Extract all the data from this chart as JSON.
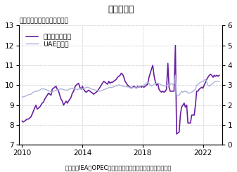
{
  "title": "原油生産量",
  "subtitle": "（両軸共に百万バレル／日）",
  "footer": "（出所：IEA、OPECより住友商事グローバルリサーチ作成）",
  "legend_saudi": "サウジアラビア",
  "legend_uae": "UAE（右）",
  "saudi_color": "#6a1fa0",
  "uae_color": "#aab4d8",
  "left_ylim": [
    7,
    13
  ],
  "right_ylim": [
    0,
    6
  ],
  "left_yticks": [
    7,
    8,
    9,
    10,
    11,
    12,
    13
  ],
  "right_yticks": [
    0,
    1,
    2,
    3,
    4,
    5,
    6
  ],
  "xlim_start": 2009.8,
  "xlim_end": 2023.3,
  "xticks": [
    2010,
    2014,
    2018,
    2022
  ],
  "grid_color": "#cccccc",
  "background_color": "#ffffff",
  "saudi_data": [
    [
      2010.0,
      8.2
    ],
    [
      2010.08,
      8.15
    ],
    [
      2010.17,
      8.2
    ],
    [
      2010.25,
      8.25
    ],
    [
      2010.33,
      8.3
    ],
    [
      2010.42,
      8.3
    ],
    [
      2010.5,
      8.35
    ],
    [
      2010.58,
      8.4
    ],
    [
      2010.67,
      8.55
    ],
    [
      2010.75,
      8.7
    ],
    [
      2010.83,
      8.85
    ],
    [
      2010.92,
      9.0
    ],
    [
      2011.0,
      8.8
    ],
    [
      2011.08,
      8.85
    ],
    [
      2011.17,
      8.9
    ],
    [
      2011.25,
      9.0
    ],
    [
      2011.33,
      9.1
    ],
    [
      2011.42,
      9.15
    ],
    [
      2011.5,
      9.3
    ],
    [
      2011.58,
      9.4
    ],
    [
      2011.67,
      9.5
    ],
    [
      2011.75,
      9.6
    ],
    [
      2011.83,
      9.55
    ],
    [
      2011.92,
      9.5
    ],
    [
      2012.0,
      9.8
    ],
    [
      2012.08,
      9.85
    ],
    [
      2012.17,
      9.9
    ],
    [
      2012.25,
      9.95
    ],
    [
      2012.33,
      9.8
    ],
    [
      2012.42,
      9.7
    ],
    [
      2012.5,
      9.5
    ],
    [
      2012.58,
      9.3
    ],
    [
      2012.67,
      9.2
    ],
    [
      2012.75,
      9.0
    ],
    [
      2012.83,
      9.1
    ],
    [
      2012.92,
      9.2
    ],
    [
      2013.0,
      9.1
    ],
    [
      2013.08,
      9.2
    ],
    [
      2013.17,
      9.3
    ],
    [
      2013.25,
      9.4
    ],
    [
      2013.33,
      9.6
    ],
    [
      2013.42,
      9.7
    ],
    [
      2013.5,
      9.9
    ],
    [
      2013.58,
      10.0
    ],
    [
      2013.67,
      10.05
    ],
    [
      2013.75,
      10.1
    ],
    [
      2013.83,
      9.9
    ],
    [
      2013.92,
      9.8
    ],
    [
      2014.0,
      9.95
    ],
    [
      2014.08,
      9.8
    ],
    [
      2014.17,
      9.7
    ],
    [
      2014.25,
      9.65
    ],
    [
      2014.33,
      9.7
    ],
    [
      2014.42,
      9.75
    ],
    [
      2014.5,
      9.7
    ],
    [
      2014.58,
      9.65
    ],
    [
      2014.67,
      9.6
    ],
    [
      2014.75,
      9.55
    ],
    [
      2014.83,
      9.6
    ],
    [
      2014.92,
      9.65
    ],
    [
      2015.0,
      9.7
    ],
    [
      2015.08,
      9.8
    ],
    [
      2015.17,
      9.9
    ],
    [
      2015.25,
      10.0
    ],
    [
      2015.33,
      10.1
    ],
    [
      2015.42,
      10.2
    ],
    [
      2015.5,
      10.15
    ],
    [
      2015.58,
      10.1
    ],
    [
      2015.67,
      10.05
    ],
    [
      2015.75,
      10.2
    ],
    [
      2015.83,
      10.1
    ],
    [
      2015.92,
      10.15
    ],
    [
      2016.0,
      10.15
    ],
    [
      2016.08,
      10.2
    ],
    [
      2016.17,
      10.25
    ],
    [
      2016.25,
      10.3
    ],
    [
      2016.33,
      10.4
    ],
    [
      2016.42,
      10.45
    ],
    [
      2016.5,
      10.5
    ],
    [
      2016.58,
      10.6
    ],
    [
      2016.67,
      10.55
    ],
    [
      2016.75,
      10.4
    ],
    [
      2016.83,
      10.2
    ],
    [
      2016.92,
      10.1
    ],
    [
      2017.0,
      10.0
    ],
    [
      2017.08,
      9.95
    ],
    [
      2017.17,
      9.9
    ],
    [
      2017.25,
      9.85
    ],
    [
      2017.33,
      9.9
    ],
    [
      2017.42,
      9.95
    ],
    [
      2017.5,
      9.9
    ],
    [
      2017.58,
      9.85
    ],
    [
      2017.67,
      9.95
    ],
    [
      2017.75,
      9.9
    ],
    [
      2017.83,
      9.95
    ],
    [
      2017.92,
      9.9
    ],
    [
      2018.0,
      9.95
    ],
    [
      2018.08,
      9.9
    ],
    [
      2018.17,
      9.95
    ],
    [
      2018.25,
      10.0
    ],
    [
      2018.33,
      10.05
    ],
    [
      2018.42,
      10.4
    ],
    [
      2018.5,
      10.6
    ],
    [
      2018.58,
      10.8
    ],
    [
      2018.67,
      11.0
    ],
    [
      2018.75,
      10.5
    ],
    [
      2018.83,
      10.2
    ],
    [
      2018.92,
      10.0
    ],
    [
      2019.0,
      10.1
    ],
    [
      2019.08,
      9.8
    ],
    [
      2019.17,
      9.7
    ],
    [
      2019.25,
      9.65
    ],
    [
      2019.33,
      9.7
    ],
    [
      2019.42,
      9.65
    ],
    [
      2019.5,
      9.7
    ],
    [
      2019.58,
      9.8
    ],
    [
      2019.67,
      11.1
    ],
    [
      2019.75,
      9.9
    ],
    [
      2019.83,
      9.7
    ],
    [
      2019.92,
      9.7
    ],
    [
      2020.0,
      9.7
    ],
    [
      2020.08,
      9.7
    ],
    [
      2020.17,
      12.0
    ],
    [
      2020.25,
      7.55
    ],
    [
      2020.33,
      7.6
    ],
    [
      2020.42,
      7.65
    ],
    [
      2020.5,
      8.5
    ],
    [
      2020.58,
      8.9
    ],
    [
      2020.67,
      9.0
    ],
    [
      2020.75,
      9.1
    ],
    [
      2020.83,
      8.9
    ],
    [
      2020.92,
      9.0
    ],
    [
      2021.0,
      8.1
    ],
    [
      2021.08,
      8.1
    ],
    [
      2021.17,
      8.1
    ],
    [
      2021.25,
      8.5
    ],
    [
      2021.33,
      8.5
    ],
    [
      2021.42,
      8.5
    ],
    [
      2021.5,
      9.0
    ],
    [
      2021.58,
      9.7
    ],
    [
      2021.67,
      9.7
    ],
    [
      2021.75,
      9.8
    ],
    [
      2021.83,
      9.85
    ],
    [
      2021.92,
      9.9
    ],
    [
      2022.0,
      9.85
    ],
    [
      2022.08,
      10.0
    ],
    [
      2022.17,
      10.15
    ],
    [
      2022.25,
      10.3
    ],
    [
      2022.33,
      10.4
    ],
    [
      2022.42,
      10.5
    ],
    [
      2022.5,
      10.55
    ],
    [
      2022.58,
      10.5
    ],
    [
      2022.67,
      10.4
    ],
    [
      2022.75,
      10.5
    ],
    [
      2022.83,
      10.45
    ],
    [
      2022.92,
      10.5
    ],
    [
      2023.0,
      10.45
    ],
    [
      2023.08,
      10.5
    ]
  ],
  "uae_data": [
    [
      2010.0,
      2.4
    ],
    [
      2010.08,
      2.42
    ],
    [
      2010.17,
      2.44
    ],
    [
      2010.25,
      2.46
    ],
    [
      2010.33,
      2.5
    ],
    [
      2010.42,
      2.52
    ],
    [
      2010.5,
      2.54
    ],
    [
      2010.58,
      2.55
    ],
    [
      2010.67,
      2.6
    ],
    [
      2010.75,
      2.65
    ],
    [
      2010.83,
      2.68
    ],
    [
      2010.92,
      2.7
    ],
    [
      2011.0,
      2.7
    ],
    [
      2011.08,
      2.72
    ],
    [
      2011.17,
      2.75
    ],
    [
      2011.25,
      2.8
    ],
    [
      2011.33,
      2.82
    ],
    [
      2011.42,
      2.82
    ],
    [
      2011.5,
      2.8
    ],
    [
      2011.58,
      2.78
    ],
    [
      2011.67,
      2.75
    ],
    [
      2011.75,
      2.72
    ],
    [
      2011.83,
      2.7
    ],
    [
      2011.92,
      2.68
    ],
    [
      2012.0,
      2.65
    ],
    [
      2012.08,
      2.7
    ],
    [
      2012.17,
      2.72
    ],
    [
      2012.25,
      2.75
    ],
    [
      2012.33,
      2.76
    ],
    [
      2012.42,
      2.78
    ],
    [
      2012.5,
      2.8
    ],
    [
      2012.58,
      2.82
    ],
    [
      2012.67,
      2.8
    ],
    [
      2012.75,
      2.78
    ],
    [
      2012.83,
      2.76
    ],
    [
      2012.92,
      2.75
    ],
    [
      2013.0,
      2.75
    ],
    [
      2013.08,
      2.78
    ],
    [
      2013.17,
      2.82
    ],
    [
      2013.25,
      2.85
    ],
    [
      2013.33,
      2.85
    ],
    [
      2013.42,
      2.83
    ],
    [
      2013.5,
      2.82
    ],
    [
      2013.58,
      2.8
    ],
    [
      2013.67,
      2.78
    ],
    [
      2013.75,
      2.8
    ],
    [
      2013.83,
      2.82
    ],
    [
      2013.92,
      2.83
    ],
    [
      2014.0,
      2.82
    ],
    [
      2014.08,
      2.84
    ],
    [
      2014.17,
      2.86
    ],
    [
      2014.25,
      2.88
    ],
    [
      2014.33,
      2.9
    ],
    [
      2014.42,
      2.88
    ],
    [
      2014.5,
      2.85
    ],
    [
      2014.58,
      2.82
    ],
    [
      2014.67,
      2.8
    ],
    [
      2014.75,
      2.78
    ],
    [
      2014.83,
      2.76
    ],
    [
      2014.92,
      2.75
    ],
    [
      2015.0,
      2.75
    ],
    [
      2015.08,
      2.72
    ],
    [
      2015.17,
      2.7
    ],
    [
      2015.25,
      2.72
    ],
    [
      2015.33,
      2.75
    ],
    [
      2015.42,
      2.78
    ],
    [
      2015.5,
      2.8
    ],
    [
      2015.58,
      2.82
    ],
    [
      2015.67,
      2.85
    ],
    [
      2015.75,
      2.88
    ],
    [
      2015.83,
      2.9
    ],
    [
      2015.92,
      2.88
    ],
    [
      2016.0,
      2.9
    ],
    [
      2016.08,
      2.92
    ],
    [
      2016.17,
      2.95
    ],
    [
      2016.25,
      2.98
    ],
    [
      2016.33,
      3.0
    ],
    [
      2016.42,
      3.02
    ],
    [
      2016.5,
      3.0
    ],
    [
      2016.58,
      2.98
    ],
    [
      2016.67,
      2.96
    ],
    [
      2016.75,
      2.94
    ],
    [
      2016.83,
      2.93
    ],
    [
      2016.92,
      2.92
    ],
    [
      2017.0,
      2.92
    ],
    [
      2017.08,
      2.9
    ],
    [
      2017.17,
      2.88
    ],
    [
      2017.25,
      2.86
    ],
    [
      2017.33,
      2.88
    ],
    [
      2017.42,
      2.9
    ],
    [
      2017.5,
      2.88
    ],
    [
      2017.58,
      2.85
    ],
    [
      2017.67,
      2.9
    ],
    [
      2017.75,
      2.92
    ],
    [
      2017.83,
      2.95
    ],
    [
      2017.92,
      2.98
    ],
    [
      2018.0,
      2.95
    ],
    [
      2018.08,
      3.0
    ],
    [
      2018.17,
      3.05
    ],
    [
      2018.25,
      3.1
    ],
    [
      2018.33,
      3.15
    ],
    [
      2018.42,
      3.1
    ],
    [
      2018.5,
      3.0
    ],
    [
      2018.58,
      2.95
    ],
    [
      2018.67,
      3.0
    ],
    [
      2018.75,
      3.05
    ],
    [
      2018.83,
      3.1
    ],
    [
      2018.92,
      3.08
    ],
    [
      2019.0,
      3.1
    ],
    [
      2019.08,
      3.08
    ],
    [
      2019.17,
      3.05
    ],
    [
      2019.25,
      3.0
    ],
    [
      2019.33,
      2.98
    ],
    [
      2019.42,
      2.96
    ],
    [
      2019.5,
      2.95
    ],
    [
      2019.58,
      2.98
    ],
    [
      2019.67,
      3.05
    ],
    [
      2019.75,
      3.0
    ],
    [
      2019.83,
      3.05
    ],
    [
      2019.92,
      3.08
    ],
    [
      2020.0,
      3.05
    ],
    [
      2020.08,
      3.08
    ],
    [
      2020.17,
      3.5
    ],
    [
      2020.25,
      2.5
    ],
    [
      2020.33,
      2.5
    ],
    [
      2020.42,
      2.5
    ],
    [
      2020.5,
      2.6
    ],
    [
      2020.58,
      2.7
    ],
    [
      2020.67,
      2.65
    ],
    [
      2020.75,
      2.7
    ],
    [
      2020.83,
      2.68
    ],
    [
      2020.92,
      2.7
    ],
    [
      2021.0,
      2.6
    ],
    [
      2021.08,
      2.6
    ],
    [
      2021.17,
      2.62
    ],
    [
      2021.25,
      2.65
    ],
    [
      2021.33,
      2.7
    ],
    [
      2021.42,
      2.75
    ],
    [
      2021.5,
      2.8
    ],
    [
      2021.58,
      3.0
    ],
    [
      2021.67,
      3.05
    ],
    [
      2021.75,
      3.1
    ],
    [
      2021.83,
      3.15
    ],
    [
      2021.92,
      3.18
    ],
    [
      2022.0,
      3.2
    ],
    [
      2022.08,
      3.25
    ],
    [
      2022.17,
      3.3
    ],
    [
      2022.25,
      3.15
    ],
    [
      2022.33,
      3.0
    ],
    [
      2022.42,
      2.95
    ],
    [
      2022.5,
      3.0
    ],
    [
      2022.58,
      3.05
    ],
    [
      2022.67,
      3.1
    ],
    [
      2022.75,
      3.15
    ],
    [
      2022.83,
      3.2
    ],
    [
      2022.92,
      3.2
    ],
    [
      2023.0,
      3.2
    ],
    [
      2023.08,
      3.2
    ]
  ]
}
